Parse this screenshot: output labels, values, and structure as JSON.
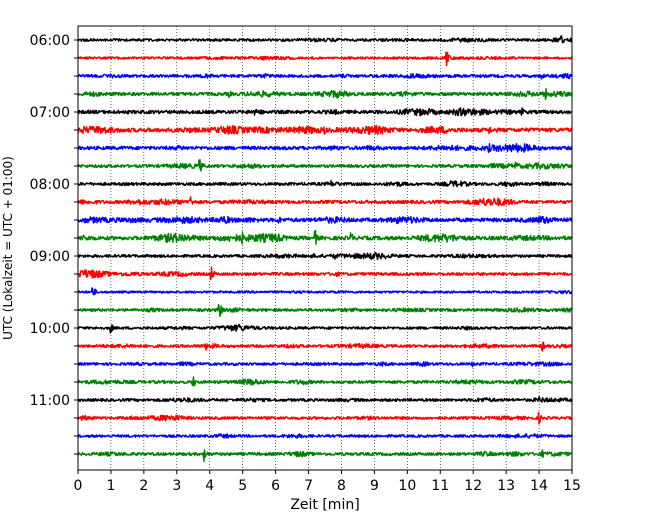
{
  "chart_data": {
    "type": "line",
    "title": "",
    "xlabel": "Zeit  [min]",
    "ylabel": "UTC (Lokalzeit = UTC + 01:00)",
    "xlim": [
      0,
      15
    ],
    "x_ticks": [
      "0",
      "1",
      "2",
      "3",
      "4",
      "5",
      "6",
      "7",
      "8",
      "9",
      "10",
      "11",
      "12",
      "13",
      "14",
      "15"
    ],
    "y_tick_labels": [
      "06:00",
      "07:00",
      "08:00",
      "09:00",
      "10:00",
      "11:00"
    ],
    "grid": "vertical dotted lines at each minute",
    "legend": "none",
    "trace_interval_minutes": 15,
    "color_cycle": [
      "#000000",
      "#ff0000",
      "#0000ff",
      "#008000"
    ],
    "traces": [
      {
        "start": "06:00",
        "color": "#000000",
        "activity": 0.25,
        "events": [
          {
            "x": 14.7,
            "amp": 0.6
          }
        ]
      },
      {
        "start": "06:15",
        "color": "#ff0000",
        "activity": 0.2,
        "events": [
          {
            "x": 11.2,
            "amp": 1.0
          }
        ]
      },
      {
        "start": "06:30",
        "color": "#0000ff",
        "activity": 0.35,
        "events": [
          {
            "x": 14.1,
            "amp": 0.5
          }
        ]
      },
      {
        "start": "06:45",
        "color": "#008000",
        "activity": 0.45,
        "events": [
          {
            "x": 4.6,
            "amp": 0.5
          },
          {
            "x": 14.2,
            "amp": 0.8
          }
        ]
      },
      {
        "start": "07:00",
        "color": "#000000",
        "activity": 0.5,
        "events": [
          {
            "x": 13.5,
            "amp": 0.6
          }
        ]
      },
      {
        "start": "07:15",
        "color": "#ff0000",
        "activity": 0.65,
        "events": [
          {
            "x": 7.5,
            "amp": 0.6
          },
          {
            "x": 12.5,
            "amp": 0.6
          }
        ]
      },
      {
        "start": "07:30",
        "color": "#0000ff",
        "activity": 0.5,
        "events": [
          {
            "x": 12.5,
            "amp": 0.6
          }
        ]
      },
      {
        "start": "07:45",
        "color": "#008000",
        "activity": 0.35,
        "events": [
          {
            "x": 3.7,
            "amp": 1.0
          },
          {
            "x": 13.3,
            "amp": 0.7
          }
        ]
      },
      {
        "start": "08:00",
        "color": "#000000",
        "activity": 0.35,
        "events": [
          {
            "x": 7.7,
            "amp": 0.5
          }
        ]
      },
      {
        "start": "08:15",
        "color": "#ff0000",
        "activity": 0.45,
        "events": [
          {
            "x": 3.4,
            "amp": 1.0
          }
        ]
      },
      {
        "start": "08:30",
        "color": "#0000ff",
        "activity": 0.6,
        "events": [
          {
            "x": 6.1,
            "amp": 0.6
          },
          {
            "x": 9.7,
            "amp": 0.6
          }
        ]
      },
      {
        "start": "08:45",
        "color": "#008000",
        "activity": 0.6,
        "events": [
          {
            "x": 5.0,
            "amp": 0.8
          },
          {
            "x": 7.2,
            "amp": 1.2
          },
          {
            "x": 8.3,
            "amp": 0.8
          }
        ]
      },
      {
        "start": "09:00",
        "color": "#000000",
        "activity": 0.3,
        "events": [
          {
            "x": 7.8,
            "amp": 0.6
          }
        ]
      },
      {
        "start": "09:15",
        "color": "#ff0000",
        "activity": 0.35,
        "events": [
          {
            "x": 4.05,
            "amp": 1.1
          }
        ]
      },
      {
        "start": "09:30",
        "color": "#0000ff",
        "activity": 0.15,
        "events": [
          {
            "x": 0.45,
            "amp": 0.9
          }
        ]
      },
      {
        "start": "09:45",
        "color": "#008000",
        "activity": 0.3,
        "events": [
          {
            "x": 4.3,
            "amp": 1.1
          }
        ]
      },
      {
        "start": "10:00",
        "color": "#000000",
        "activity": 0.25,
        "events": [
          {
            "x": 1.0,
            "amp": 0.7
          },
          {
            "x": 4.9,
            "amp": 0.6
          }
        ]
      },
      {
        "start": "10:15",
        "color": "#ff0000",
        "activity": 0.3,
        "events": [
          {
            "x": 3.9,
            "amp": 0.6
          },
          {
            "x": 14.1,
            "amp": 0.8
          }
        ]
      },
      {
        "start": "10:30",
        "color": "#0000ff",
        "activity": 0.3,
        "events": [
          {
            "x": 12.0,
            "amp": 0.4
          }
        ]
      },
      {
        "start": "10:45",
        "color": "#008000",
        "activity": 0.35,
        "events": [
          {
            "x": 3.5,
            "amp": 0.8
          }
        ]
      },
      {
        "start": "11:00",
        "color": "#000000",
        "activity": 0.3,
        "events": [
          {
            "x": 14.0,
            "amp": 0.5
          }
        ]
      },
      {
        "start": "11:15",
        "color": "#ff0000",
        "activity": 0.3,
        "events": [
          {
            "x": 14.0,
            "amp": 0.8
          }
        ]
      },
      {
        "start": "11:30",
        "color": "#0000ff",
        "activity": 0.25,
        "events": []
      },
      {
        "start": "11:45",
        "color": "#008000",
        "activity": 0.35,
        "events": [
          {
            "x": 3.85,
            "amp": 1.0
          },
          {
            "x": 14.1,
            "amp": 0.6
          }
        ]
      }
    ]
  }
}
